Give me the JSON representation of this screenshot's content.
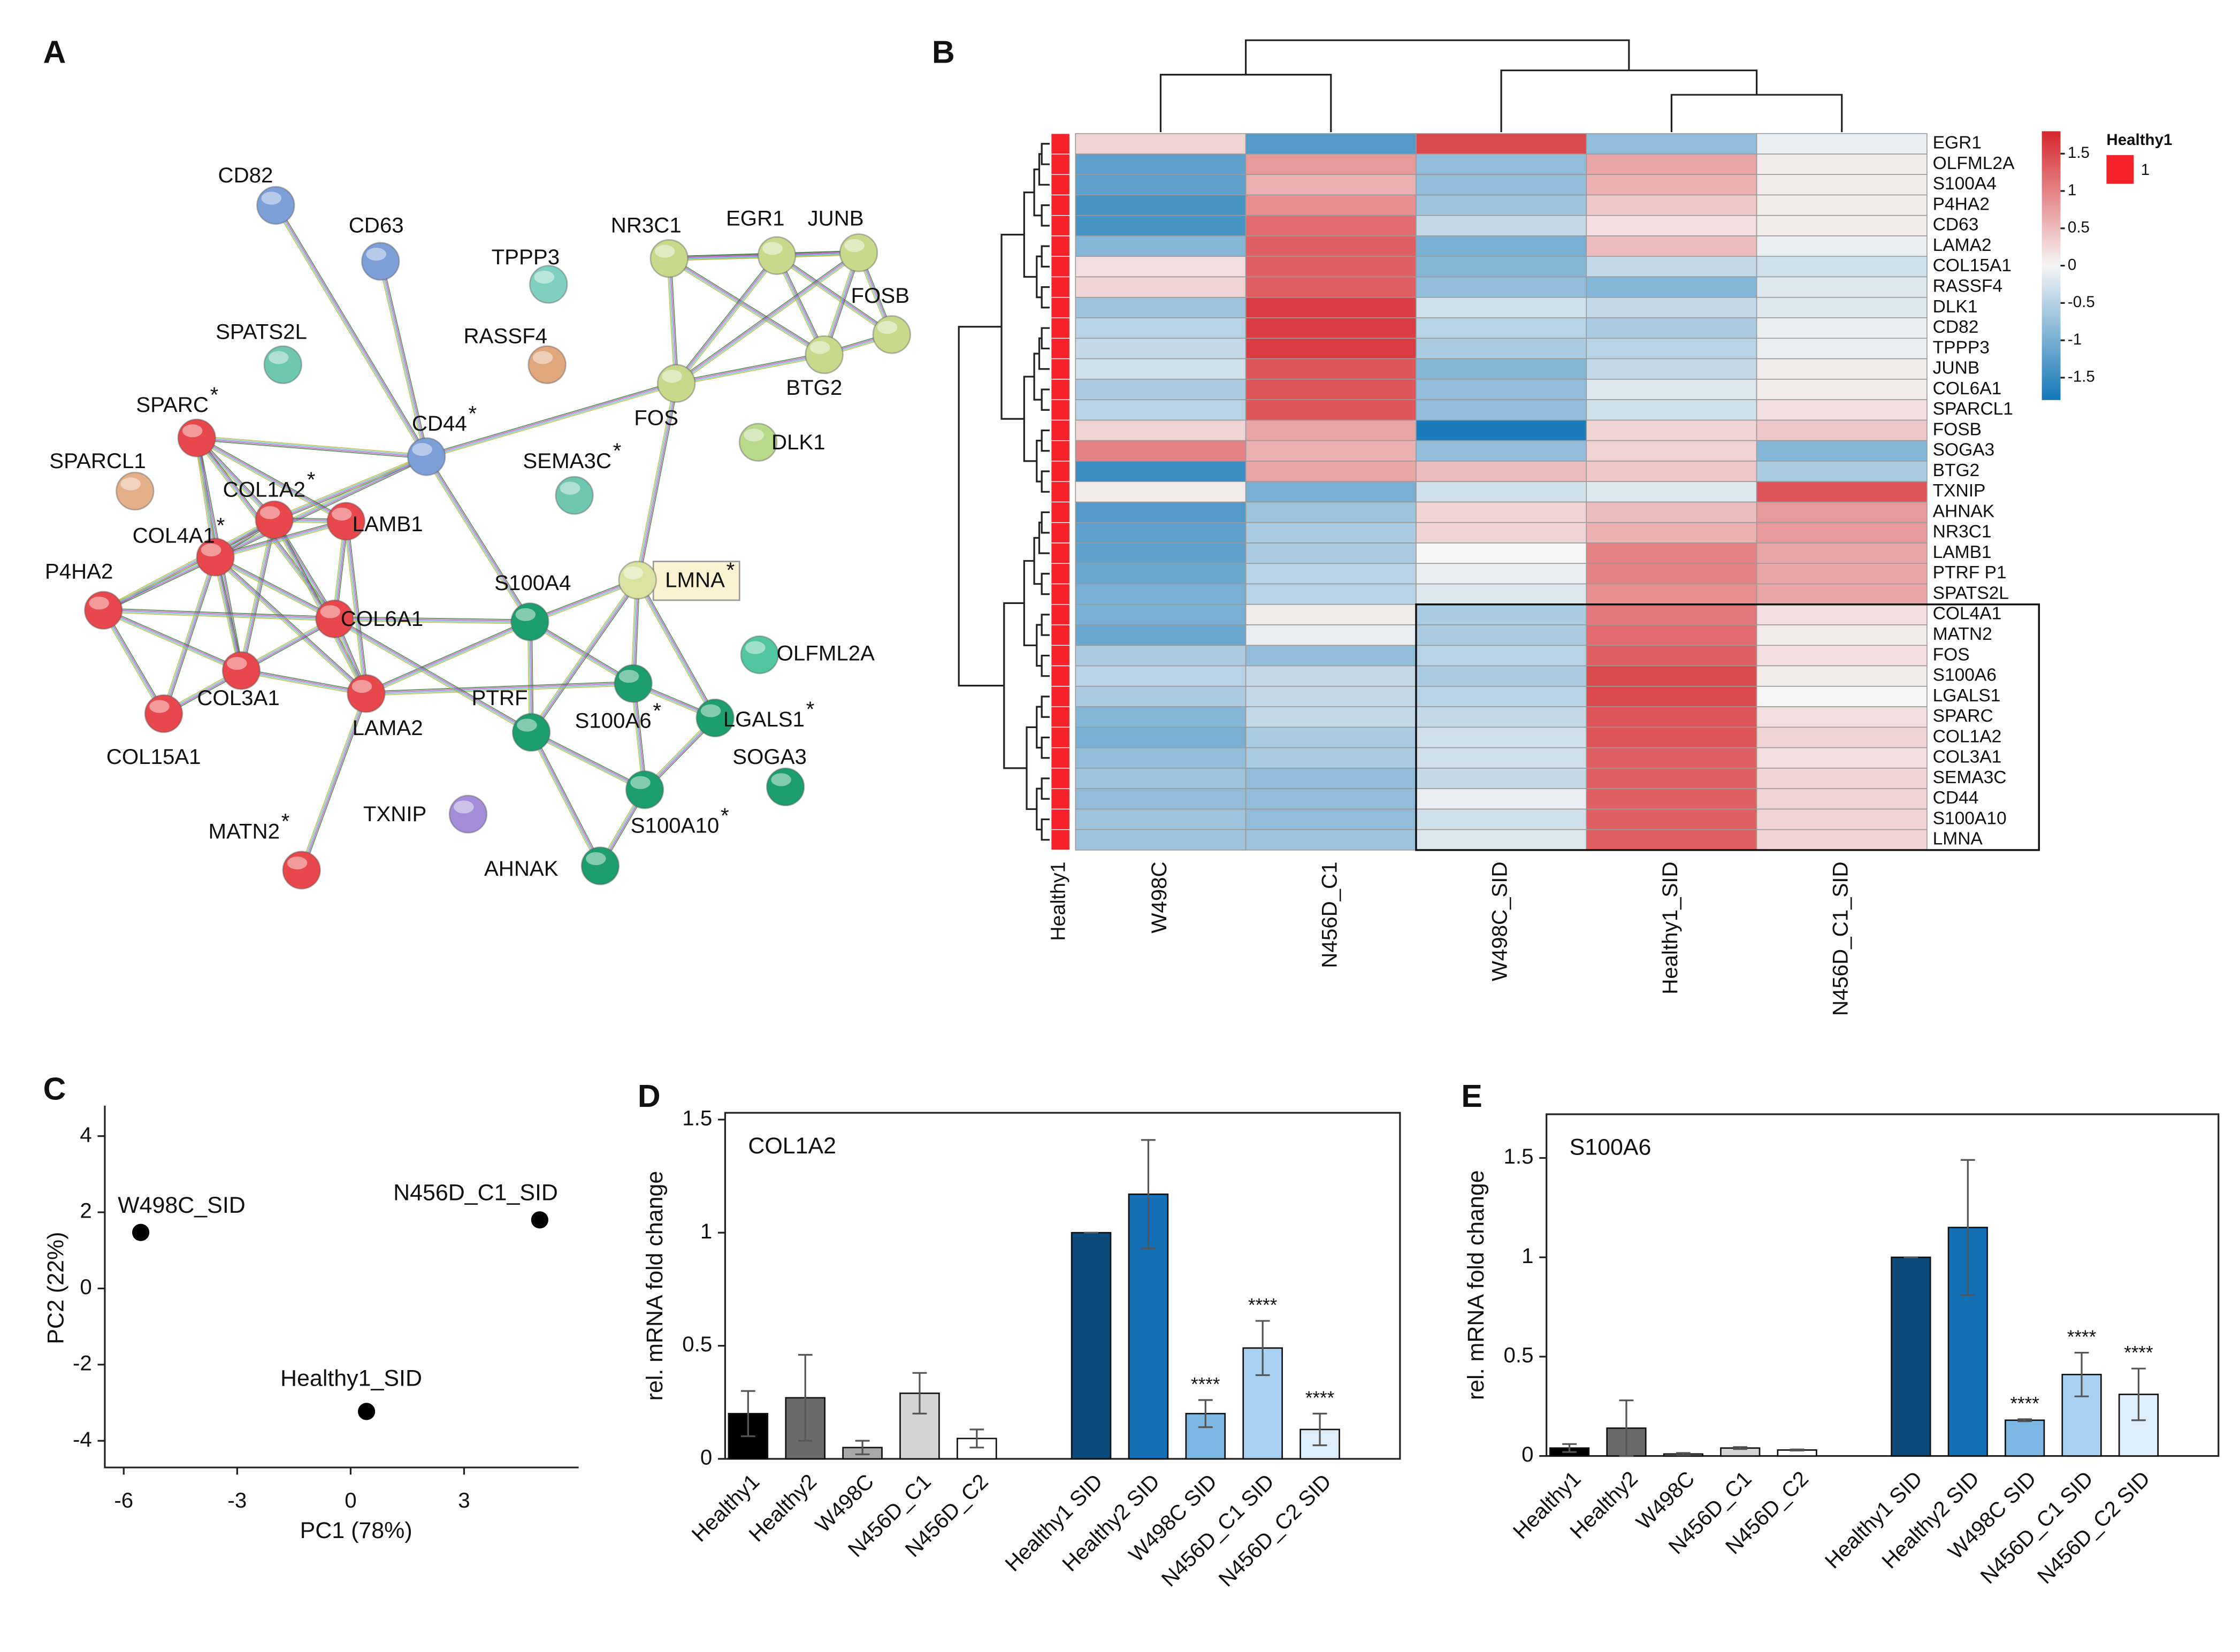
{
  "chart_data": [
    {
      "type": "network",
      "panel": "A",
      "nodes": [
        {
          "label": "CD82",
          "color": "#7d9fd8"
        },
        {
          "label": "CD63",
          "color": "#7d9fd8"
        },
        {
          "label": "TPPP3",
          "color": "#7fd0c0"
        },
        {
          "label": "SPATS2L",
          "color": "#6fc7b2"
        },
        {
          "label": "RASSF4",
          "color": "#e0a67c"
        },
        {
          "label": "NR3C1",
          "color": "#c9d98c"
        },
        {
          "label": "EGR1",
          "color": "#c9d98c"
        },
        {
          "label": "JUNB",
          "color": "#c9d98c"
        },
        {
          "label": "FOSB",
          "color": "#c9d98c"
        },
        {
          "label": "BTG2",
          "color": "#c9d98c"
        },
        {
          "label": "FOS",
          "color": "#c9d98c"
        },
        {
          "label": "DLK1",
          "color": "#b8d88a"
        },
        {
          "label": "CD44",
          "color": "#7d9fd8",
          "suffix": "*"
        },
        {
          "label": "SEMA3C",
          "color": "#6fc7b2",
          "suffix": "*"
        },
        {
          "label": "SPARC",
          "color": "#e8474b",
          "suffix": "*"
        },
        {
          "label": "SPARCL1",
          "color": "#e3b08a"
        },
        {
          "label": "COL1A2",
          "color": "#e8474b",
          "suffix": "*"
        },
        {
          "label": "LAMB1",
          "color": "#e8474b"
        },
        {
          "label": "COL4A1",
          "color": "#e8474b",
          "suffix": "*"
        },
        {
          "label": "P4HA2",
          "color": "#e8474b"
        },
        {
          "label": "COL6A1",
          "color": "#e8474b"
        },
        {
          "label": "S100A4",
          "color": "#1c9e6f"
        },
        {
          "label": "LMNA",
          "color": "#d9e2a0",
          "suffix": "*"
        },
        {
          "label": "COL3A1",
          "color": "#e8474b"
        },
        {
          "label": "LAMA2",
          "color": "#e8474b"
        },
        {
          "label": "COL15A1",
          "color": "#e8474b"
        },
        {
          "label": "PTRF",
          "color": "#1c9e6f"
        },
        {
          "label": "S100A6",
          "color": "#1c9e6f",
          "suffix": "*"
        },
        {
          "label": "LGALS1",
          "color": "#1c9e6f",
          "suffix": "*"
        },
        {
          "label": "OLFML2A",
          "color": "#52c6a0"
        },
        {
          "label": "SOGA3",
          "color": "#1c9e6f"
        },
        {
          "label": "TXNIP",
          "color": "#a58cd8"
        },
        {
          "label": "S100A10",
          "color": "#1c9e6f",
          "suffix": "*"
        },
        {
          "label": "AHNAK",
          "color": "#1c9e6f"
        },
        {
          "label": "MATN2",
          "color": "#e8474b",
          "suffix": "*"
        }
      ]
    },
    {
      "type": "heatmap",
      "panel": "B",
      "columns": [
        "W498C",
        "N456D_C1",
        "W498C_SID",
        "Healthy1_SID",
        "N456D_C1_SID"
      ],
      "rows": [
        "EGR1",
        "OLFML2A",
        "S100A4",
        "P4HA2",
        "CD63",
        "LAMA2",
        "COL15A1",
        "RASSF4",
        "DLK1",
        "CD82",
        "TPPP3",
        "JUNB",
        "COL6A1",
        "SPARCL1",
        "FOSB",
        "SOGA3",
        "BTG2",
        "TXNIP",
        "AHNAK",
        "NR3C1",
        "LAMB1",
        "PTRF P1",
        "SPATS2L",
        "COL4A1",
        "MATN2",
        "FOS",
        "S100A6",
        "LGALS1",
        "SPARC",
        "COL1A2",
        "COL3A1",
        "SEMA3C",
        "CD44",
        "S100A10",
        "LMNA"
      ],
      "values": [
        [
          0.3,
          -1.3,
          1.5,
          -0.8,
          -0.1
        ],
        [
          -1.2,
          0.8,
          -0.8,
          0.7,
          0.1
        ],
        [
          -1.2,
          0.6,
          -0.8,
          0.6,
          0.1
        ],
        [
          -1.4,
          0.9,
          -0.7,
          0.4,
          0.1
        ],
        [
          -1.4,
          1.2,
          -0.4,
          0.2,
          0.1
        ],
        [
          -0.9,
          1.3,
          -1.0,
          0.5,
          -0.1
        ],
        [
          0.2,
          1.3,
          -0.9,
          -0.4,
          -0.3
        ],
        [
          0.3,
          1.3,
          -0.8,
          -0.9,
          -0.2
        ],
        [
          -0.7,
          1.6,
          -0.3,
          -0.4,
          -0.2
        ],
        [
          -0.5,
          1.6,
          -0.5,
          -0.6,
          -0.1
        ],
        [
          -0.4,
          1.6,
          -0.6,
          -0.5,
          -0.1
        ],
        [
          -0.3,
          1.4,
          -0.9,
          -0.4,
          0.1
        ],
        [
          -0.6,
          1.4,
          -0.8,
          -0.2,
          0.1
        ],
        [
          -0.5,
          1.4,
          -0.8,
          -0.3,
          0.2
        ],
        [
          0.3,
          0.7,
          -1.75,
          0.3,
          0.4
        ],
        [
          1.0,
          0.6,
          -0.8,
          0.3,
          -0.9
        ],
        [
          -1.5,
          0.7,
          0.5,
          0.4,
          -0.6
        ],
        [
          0.1,
          -1.0,
          -0.3,
          -0.2,
          1.4
        ],
        [
          -1.3,
          -0.7,
          0.3,
          0.5,
          0.8
        ],
        [
          -1.2,
          -0.6,
          0.3,
          0.6,
          0.8
        ],
        [
          -1.2,
          -0.6,
          0.0,
          1.0,
          0.7
        ],
        [
          -1.1,
          -0.5,
          -0.1,
          1.0,
          0.7
        ],
        [
          -1.0,
          -0.5,
          -0.2,
          0.9,
          0.7
        ],
        [
          -1.0,
          0.1,
          -0.6,
          1.1,
          0.2
        ],
        [
          -1.1,
          -0.1,
          -0.6,
          1.2,
          0.1
        ],
        [
          -0.6,
          -0.8,
          -0.5,
          1.3,
          0.2
        ],
        [
          -0.5,
          -0.4,
          -0.6,
          1.5,
          0.1
        ],
        [
          -0.6,
          -0.4,
          -0.5,
          1.5,
          0.0
        ],
        [
          -0.9,
          -0.4,
          -0.4,
          1.4,
          0.2
        ],
        [
          -1.0,
          -0.6,
          -0.3,
          1.4,
          0.3
        ],
        [
          -0.8,
          -0.6,
          -0.3,
          1.3,
          0.2
        ],
        [
          -0.7,
          -0.8,
          -0.4,
          1.3,
          0.3
        ],
        [
          -0.8,
          -0.8,
          -0.1,
          1.3,
          0.3
        ],
        [
          -0.7,
          -0.8,
          -0.3,
          1.3,
          0.3
        ],
        [
          -0.7,
          -0.7,
          -0.2,
          1.3,
          0.3
        ]
      ],
      "clim": [
        -1.8,
        1.8
      ],
      "cticks": [
        1.5,
        1,
        0.5,
        0,
        -0.5,
        -1,
        -1.5
      ],
      "colors": [
        "#1477b8",
        "#f5f5f5",
        "#d7262b"
      ],
      "annotation": {
        "name": "Healthy1",
        "label": "1",
        "color": "#f5222a"
      }
    },
    {
      "type": "scatter",
      "panel": "C",
      "labels": [
        "W498C_SID",
        "N456D_C1_SID",
        "Healthy1_SID"
      ],
      "x": [
        -5.55,
        5.0,
        0.42
      ],
      "y": [
        1.47,
        1.8,
        -3.23
      ],
      "xlim": [
        -6.5,
        6.03
      ],
      "ylim": [
        -4.7,
        4.8
      ],
      "xticks": [
        -6,
        -3,
        0,
        3
      ],
      "yticks": [
        4,
        2,
        0,
        -2,
        -4
      ],
      "xlabel": "PC1 (78%)",
      "ylabel": "PC2 (22%)",
      "color": "#000000"
    },
    {
      "type": "bar",
      "panel": "D",
      "title": "COL1A2",
      "ylabel": "rel. mRNA fold change",
      "categories": [
        "Healthy1",
        "Healthy2",
        "W498C",
        "N456D_C1",
        "N456D_C2",
        "Healthy1 SID",
        "Healthy2 SID",
        "W498C SID",
        "N456D_C1 SID",
        "N456D_C2 SID"
      ],
      "values": [
        0.2,
        0.27,
        0.05,
        0.29,
        0.09,
        1.0,
        1.17,
        0.2,
        0.49,
        0.13
      ],
      "errors": [
        0.1,
        0.19,
        0.03,
        0.09,
        0.04,
        0,
        0.24,
        0.06,
        0.12,
        0.07
      ],
      "significance": [
        null,
        null,
        null,
        null,
        null,
        null,
        null,
        "****",
        "****",
        "****"
      ],
      "colors": [
        "#000000",
        "#6b6b6b",
        "#a8a8a8",
        "#d4d4d4",
        "#ffffff",
        "#0b4a7b",
        "#1370b6",
        "#7db7e4",
        "#a9d2f2",
        "#ddeefa"
      ],
      "ylim": [
        0,
        1.53
      ],
      "yticks": [
        0,
        0.5,
        1,
        1.5
      ]
    },
    {
      "type": "bar",
      "panel": "E",
      "title": "S100A6",
      "ylabel": "rel. mRNA fold change",
      "categories": [
        "Healthy1",
        "Healthy2",
        "W498C",
        "N456D_C1",
        "N456D_C2",
        "Healthy1 SID",
        "Healthy2 SID",
        "W498C SID",
        "N456D_C1 SID",
        "N456D_C2 SID"
      ],
      "values": [
        0.04,
        0.14,
        0.01,
        0.04,
        0.03,
        1.0,
        1.15,
        0.18,
        0.41,
        0.31
      ],
      "errors": [
        0.02,
        0.14,
        0.005,
        0.005,
        0.003,
        0,
        0.34,
        0.005,
        0.11,
        0.13
      ],
      "significance": [
        null,
        null,
        null,
        null,
        null,
        null,
        null,
        "****",
        "****",
        "****"
      ],
      "colors": [
        "#000000",
        "#6b6b6b",
        "#a8a8a8",
        "#d4d4d4",
        "#ffffff",
        "#0b4a7b",
        "#1370b6",
        "#7db7e4",
        "#a9d2f2",
        "#ddeefa"
      ],
      "ylim": [
        0,
        1.72
      ],
      "yticks": [
        0,
        0.5,
        1,
        1.5
      ]
    }
  ]
}
